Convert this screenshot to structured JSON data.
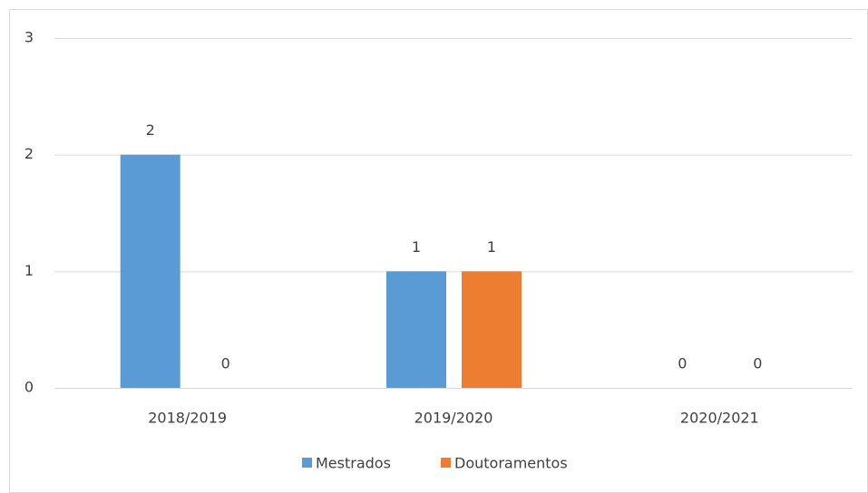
{
  "chart_data": {
    "type": "bar",
    "categories": [
      "2018/2019",
      "2019/2020",
      "2020/2021"
    ],
    "series": [
      {
        "name": "Mestrados",
        "color": "#5b9bd5",
        "values": [
          2,
          1,
          0
        ]
      },
      {
        "name": "Doutoramentos",
        "color": "#ed7d31",
        "values": [
          0,
          1,
          0
        ]
      }
    ],
    "ylim": [
      0,
      3
    ],
    "yticks": [
      0,
      1,
      2,
      3
    ],
    "grid": true,
    "legend": "bottom"
  }
}
